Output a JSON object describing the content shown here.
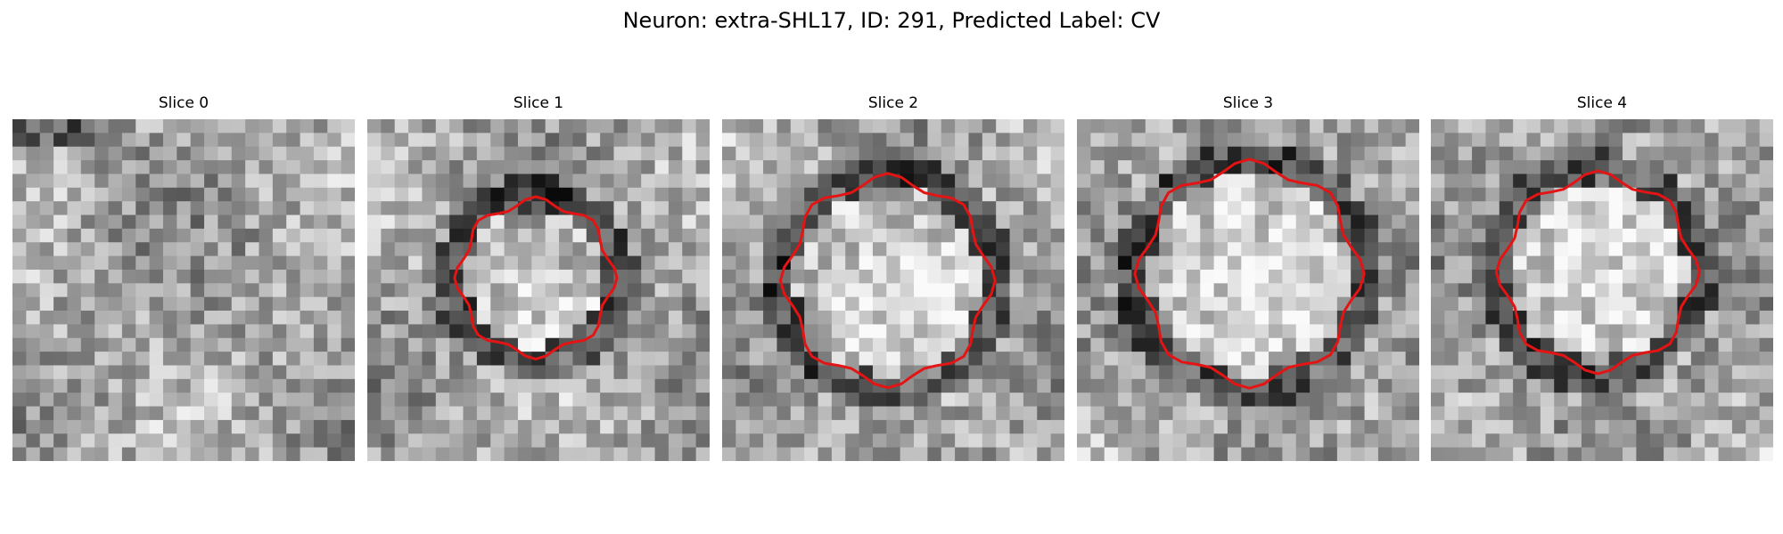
{
  "figure": {
    "title": "Neuron: extra-SHL17, ID: 291, Predicted Label: CV",
    "contour_color": "#e41414"
  },
  "panels": [
    {
      "title": "Slice 0",
      "has_contour": false
    },
    {
      "title": "Slice 1",
      "has_contour": true
    },
    {
      "title": "Slice 2",
      "has_contour": true
    },
    {
      "title": "Slice 3",
      "has_contour": true
    },
    {
      "title": "Slice 4",
      "has_contour": true
    }
  ]
}
